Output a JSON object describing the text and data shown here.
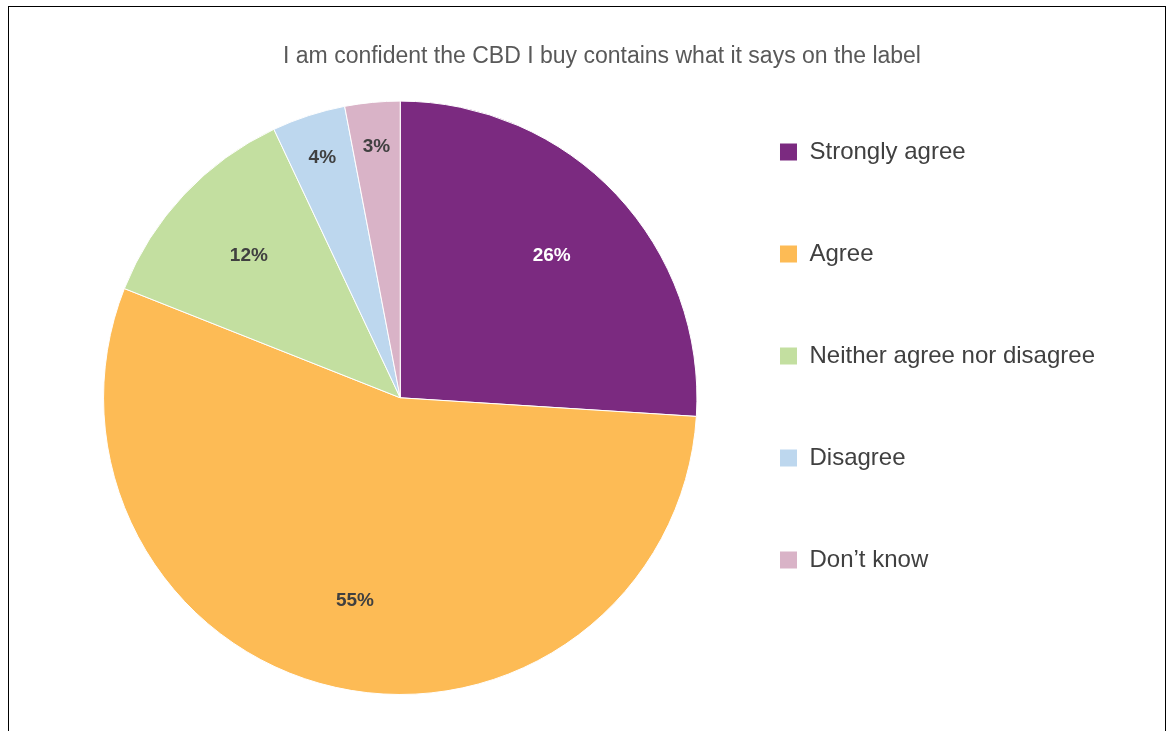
{
  "chart_data": {
    "type": "pie",
    "title": "I am confident the CBD I buy contains what it says on the label",
    "categories": [
      "Strongly agree",
      "Agree",
      "Neither agree nor disagree",
      "Disagree",
      "Don’t know"
    ],
    "values": [
      26,
      55,
      12,
      4,
      3
    ],
    "colors": [
      "#7b2a80",
      "#fdbb55",
      "#c3dfa0",
      "#bdd7ee",
      "#d9b3c7"
    ],
    "value_labels": [
      "26%",
      "55%",
      "12%",
      "4%",
      "3%"
    ],
    "legend": "right"
  }
}
